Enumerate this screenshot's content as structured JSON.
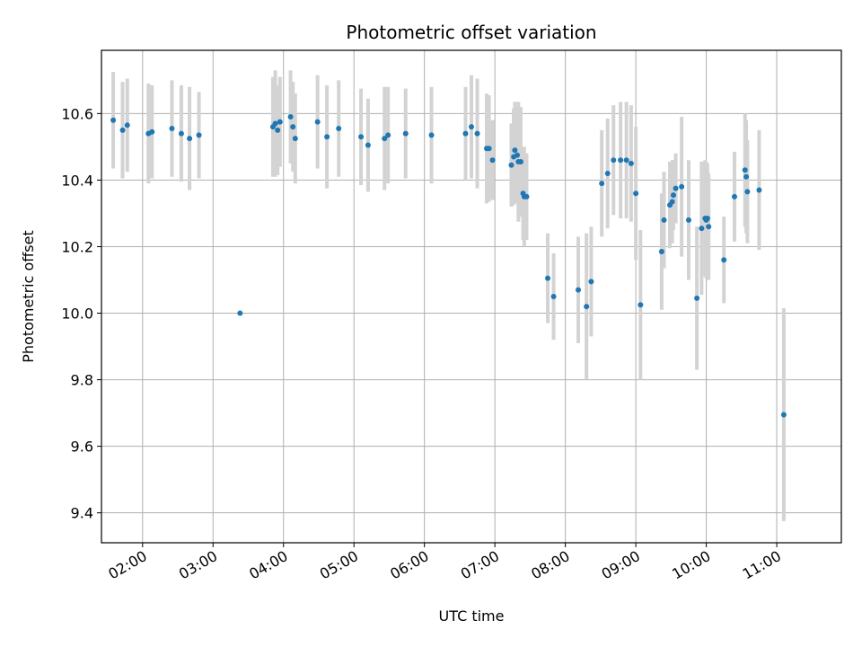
{
  "chart_data": {
    "type": "scatter",
    "title": "Photometric offset variation",
    "xlabel": "UTC time",
    "ylabel": "Photometric offset",
    "xlim": [
      "01:25",
      "11:55"
    ],
    "ylim": [
      9.31,
      10.79
    ],
    "grid": true,
    "x_ticks": [
      "02:00",
      "03:00",
      "04:00",
      "05:00",
      "06:00",
      "07:00",
      "08:00",
      "09:00",
      "10:00",
      "11:00"
    ],
    "y_ticks": [
      "9.4",
      "9.6",
      "9.8",
      "10.0",
      "10.2",
      "10.4",
      "10.6"
    ],
    "colors": {
      "point": "#1f77b4",
      "errorbar": "#d3d3d3",
      "grid": "#b0b0b0"
    },
    "series": [
      {
        "x": [
          "01:35",
          "01:43",
          "01:47",
          "02:05",
          "02:08",
          "02:25",
          "02:33",
          "02:40",
          "02:48",
          "03:23",
          "03:51",
          "03:53",
          "03:55",
          "03:57",
          "04:06",
          "04:08",
          "04:10",
          "04:29",
          "04:37",
          "04:47",
          "05:06",
          "05:12",
          "05:26",
          "05:29",
          "05:44",
          "06:06",
          "06:35",
          "06:40",
          "06:45",
          "06:53",
          "06:55",
          "06:58",
          "07:14",
          "07:16",
          "07:17",
          "07:19",
          "07:20",
          "07:22",
          "07:24",
          "07:25",
          "07:27",
          "07:45",
          "07:50",
          "08:11",
          "08:18",
          "08:22",
          "08:31",
          "08:36",
          "08:41",
          "08:47",
          "08:52",
          "08:56",
          "09:00",
          "09:04",
          "09:22",
          "09:24",
          "09:29",
          "09:31",
          "09:32",
          "09:34",
          "09:39",
          "09:45",
          "09:52",
          "09:56",
          "09:59",
          "10:00",
          "10:01",
          "10:02",
          "10:15",
          "10:24",
          "10:33",
          "10:34",
          "10:35",
          "10:45",
          "11:06"
        ],
        "y": [
          10.58,
          10.55,
          10.565,
          10.54,
          10.545,
          10.555,
          10.54,
          10.525,
          10.535,
          10.0,
          10.56,
          10.57,
          10.55,
          10.575,
          10.59,
          10.56,
          10.525,
          10.575,
          10.53,
          10.555,
          10.53,
          10.505,
          10.525,
          10.535,
          10.54,
          10.535,
          10.54,
          10.56,
          10.54,
          10.495,
          10.495,
          10.46,
          10.445,
          10.47,
          10.49,
          10.475,
          10.455,
          10.455,
          10.36,
          10.35,
          10.35,
          10.105,
          10.05,
          10.07,
          10.02,
          10.095,
          10.39,
          10.42,
          10.46,
          10.46,
          10.46,
          10.45,
          10.36,
          10.025,
          10.185,
          10.28,
          10.325,
          10.335,
          10.355,
          10.375,
          10.38,
          10.28,
          10.045,
          10.255,
          10.285,
          10.28,
          10.285,
          10.26,
          10.16,
          10.35,
          10.43,
          10.41,
          10.365,
          10.37,
          9.695
        ],
        "err": [
          0.145,
          0.145,
          0.14,
          0.15,
          0.14,
          0.145,
          0.145,
          0.155,
          0.13,
          0.0,
          0.15,
          0.16,
          0.135,
          0.135,
          0.14,
          0.135,
          0.135,
          0.14,
          0.155,
          0.145,
          0.145,
          0.14,
          0.155,
          0.145,
          0.135,
          0.145,
          0.14,
          0.155,
          0.165,
          0.165,
          0.16,
          0.12,
          0.125,
          0.145,
          0.145,
          0.145,
          0.18,
          0.165,
          0.14,
          0.15,
          0.13,
          0.135,
          0.13,
          0.16,
          0.22,
          0.165,
          0.16,
          0.165,
          0.165,
          0.175,
          0.175,
          0.175,
          0.2,
          0.225,
          0.175,
          0.145,
          0.13,
          0.125,
          0.105,
          0.105,
          0.21,
          0.18,
          0.215,
          0.2,
          0.175,
          0.175,
          0.165,
          0.16,
          0.13,
          0.135,
          0.17,
          0.17,
          0.155,
          0.18,
          0.32
        ]
      }
    ]
  }
}
